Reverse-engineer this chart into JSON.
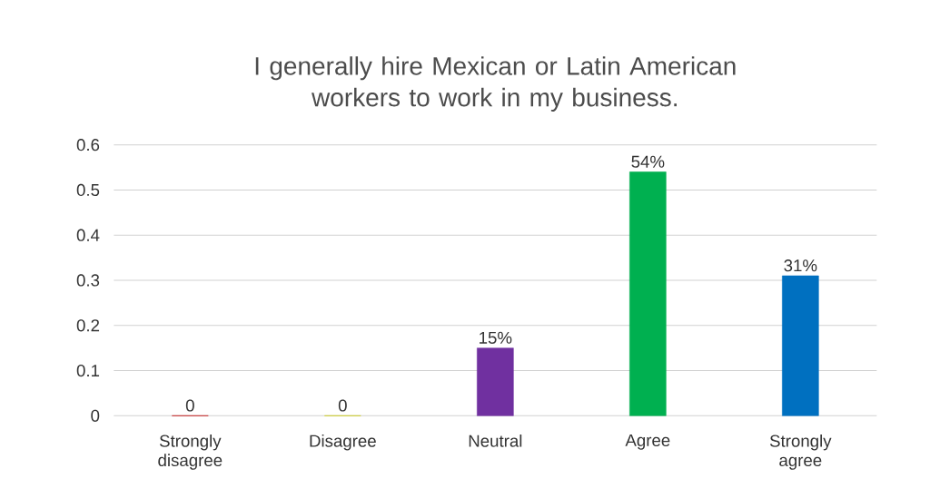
{
  "chart_data": {
    "type": "bar",
    "title": "I generally hire Mexican or Latin American workers to work in my business.",
    "categories": [
      "Strongly disagree",
      "Disagree",
      "Neutral",
      "Agree",
      "Strongly agree"
    ],
    "values": [
      0,
      0,
      0.15,
      0.54,
      0.31
    ],
    "value_labels": [
      "0",
      "0",
      "15%",
      "54%",
      "31%"
    ],
    "colors": [
      "#c00000",
      "#c8c800",
      "#7030a0",
      "#00b050",
      "#0070c0"
    ],
    "ylim": [
      0,
      0.6
    ],
    "yticks": [
      0,
      0.1,
      0.2,
      0.3,
      0.4,
      0.5,
      0.6
    ],
    "grid": "y"
  }
}
